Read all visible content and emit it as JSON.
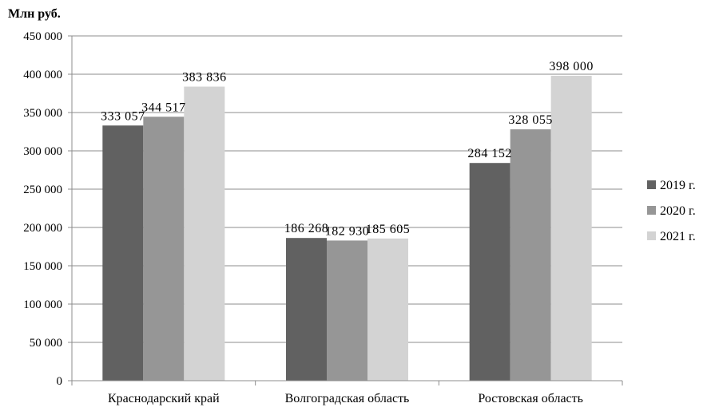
{
  "chart_data": {
    "type": "bar",
    "ylabel": "Млн руб.",
    "categories": [
      "Краснодарский край",
      "Волгоградская область",
      "Ростовская область"
    ],
    "series": [
      {
        "name": "2019 г.",
        "values": [
          333057,
          186268,
          284152
        ],
        "labels": [
          "333 057",
          "186 268",
          "284 152"
        ],
        "color": "#616161"
      },
      {
        "name": "2020 г.",
        "values": [
          344517,
          182930,
          328055
        ],
        "labels": [
          "344 517",
          "182 930",
          "328 055"
        ],
        "color": "#969696"
      },
      {
        "name": "2021 г.",
        "values": [
          383836,
          185605,
          398000
        ],
        "labels": [
          "383 836",
          "185 605",
          "398 000"
        ],
        "color": "#d3d3d3"
      }
    ],
    "ylim": [
      0,
      450000
    ],
    "yticks": [
      0,
      50000,
      100000,
      150000,
      200000,
      250000,
      300000,
      350000,
      400000,
      450000
    ],
    "ytick_labels": [
      "0",
      "50 000",
      "100 000",
      "150 000",
      "200 000",
      "250 000",
      "300 000",
      "350 000",
      "400 000",
      "450 000"
    ],
    "grid": true,
    "legend_position": "right"
  }
}
